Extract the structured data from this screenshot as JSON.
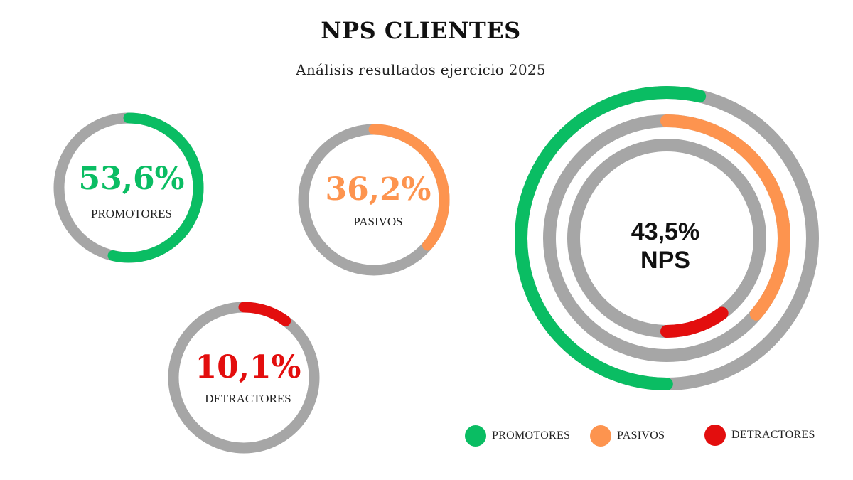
{
  "title": "NPS CLIENTES",
  "subtitle": "Análisis resultados ejercicio 2025",
  "colors": {
    "promotores": "#0abd63",
    "pasivos": "#fd944f",
    "detractores": "#e30e0e",
    "track": "#a6a6a6"
  },
  "chart_data": {
    "type": "donut",
    "series": [
      {
        "key": "promotores",
        "name": "PROMOTORES",
        "value": 53.6,
        "label": "53,6%"
      },
      {
        "key": "pasivos",
        "name": "PASIVOS",
        "value": 36.2,
        "label": "36,2%"
      },
      {
        "key": "detractores",
        "name": "DETRACTORES",
        "value": 10.1,
        "label": "10,1%"
      }
    ],
    "nps": {
      "value": 43.5,
      "label": "43,5%",
      "caption": "NPS"
    },
    "legend": [
      "PROMOTORES",
      "PASIVOS",
      "DETRACTORES"
    ],
    "legend_placement": "bottom-right"
  }
}
